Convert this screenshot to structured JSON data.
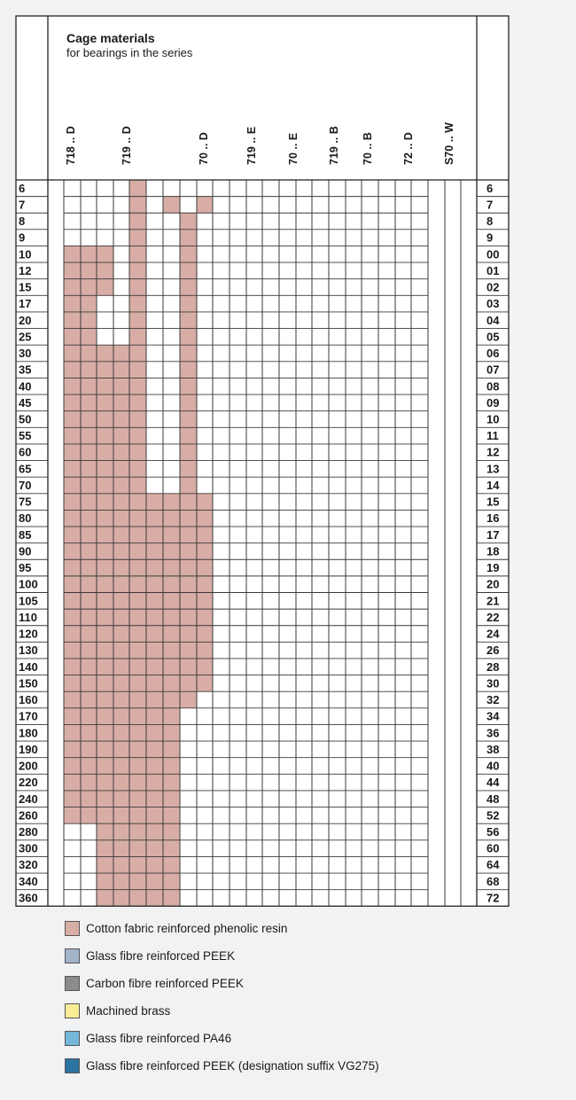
{
  "header": {
    "title": "Cage materials",
    "subtitle": "for bearings in the series"
  },
  "chart_data": {
    "type": "table",
    "series_columns": [
      "718 .. D",
      "719 .. D",
      "70 .. D",
      "719 .. E",
      "70 .. E",
      "719 .. B",
      "70 .. B",
      "72 .. D",
      "S70 .. W"
    ],
    "bore_diameters": [
      "6",
      "7",
      "8",
      "9",
      "10",
      "12",
      "15",
      "17",
      "20",
      "25",
      "30",
      "35",
      "40",
      "45",
      "50",
      "55",
      "60",
      "65",
      "70",
      "75",
      "80",
      "85",
      "90",
      "95",
      "100",
      "105",
      "110",
      "120",
      "130",
      "140",
      "150",
      "160",
      "170",
      "180",
      "190",
      "200",
      "220",
      "240",
      "260",
      "280",
      "300",
      "320",
      "340",
      "360"
    ],
    "bore_codes": [
      "6",
      "7",
      "8",
      "9",
      "00",
      "01",
      "02",
      "03",
      "04",
      "05",
      "06",
      "07",
      "08",
      "09",
      "10",
      "11",
      "12",
      "13",
      "14",
      "15",
      "16",
      "17",
      "18",
      "19",
      "20",
      "21",
      "22",
      "24",
      "26",
      "28",
      "30",
      "32",
      "34",
      "36",
      "38",
      "40",
      "44",
      "48",
      "52",
      "56",
      "60",
      "64",
      "68",
      "72"
    ],
    "materials": {
      "P": {
        "label": "Cotton fabric reinforced phenolic resin",
        "color": "#d8ada5"
      },
      "G": {
        "label": "Glass fibre reinforced PEEK",
        "color": "#a3b4c9"
      },
      "C": {
        "label": "Carbon fibre reinforced PEEK",
        "color": "#8c8c8c"
      },
      "Y": {
        "label": "Machined brass",
        "color": "#faec95"
      },
      "A": {
        "label": "Glass fibre reinforced PA46",
        "color": "#73b8db"
      },
      "V": {
        "label": "Glass fibre reinforced PEEK (designation suffix VG275)",
        "color": "#2b73a0"
      }
    },
    "legend_order": [
      "P",
      "G",
      "C",
      "Y",
      "A",
      "V"
    ],
    "cells": [
      "....P........",
      "....P.P.P....",
      "....P..P.....",
      "....P..P.....",
      "PPP.P..P.....",
      "PPP.P..P.....",
      "PPP.P..P.....",
      "PP..P..P.....",
      "PP..P..P.....",
      "PP..P..P.....",
      "PPPPP..P.....",
      "PPPPP..P.....",
      "PPPPP..P.....",
      "PPPPP..P.....",
      "PPPPP..P.....",
      "PPPPP..P.....",
      "PPPPP..P.....",
      "PPPPP..P.....",
      "PPPPP..P.....",
      "PPPPPPPPP....",
      "PPPPPPPPP....",
      "PPPPPPPPP....",
      "PPPPPPPPP....",
      "PPPPPPPPP....",
      "PPPPPPPPP....",
      "PPPPPPPPP....",
      "PPPPPPPPP....",
      "PPPPPPPPP....",
      "PPPPPPPPP....",
      "PPPPPPPPP....",
      "PPPPPPPPP....",
      "PPPPPPPP.....",
      "PPPPPPP......",
      "PPPPPPP......",
      "PPPPPPP......",
      "PPPPPPP......",
      "PPPPPPP......",
      "PPPPPPP......",
      "PPPPPPP......",
      "..PPPPP......",
      "..PPPPP......",
      "..PPPPP......",
      "..PPPPP......",
      "..PPPPP......"
    ]
  }
}
